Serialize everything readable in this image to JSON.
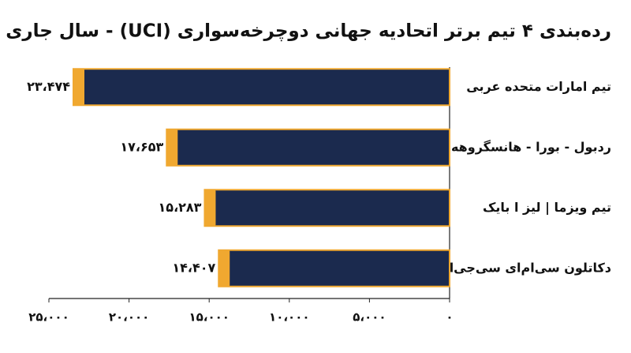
{
  "chart_data": {
    "type": "barh",
    "title": "رده‌بندی ۴ تیم برتر اتحادیه جهانی دوچرخه‌سواری (UCI) - سال جاری",
    "categories": [
      "تیم امارات متحده عربی",
      "ردبول - بورا - هانسگروهه",
      "تیم ویزما | لیز ا بایک",
      "دکاتلون سی‌ام‌ای سی‌جی‌ام"
    ],
    "values": [
      23474,
      17653,
      15283,
      14407
    ],
    "value_labels": [
      "۲۳،۴۷۴",
      "۱۷،۶۵۳",
      "۱۵،۲۸۳",
      "۱۴،۴۰۷"
    ],
    "color": "#1b2a4e",
    "edge_color": "#f0a830",
    "xlim": [
      0,
      25000
    ],
    "xticks": [
      {
        "value": 0,
        "label": "۰"
      },
      {
        "value": 5000,
        "label": "۵،۰۰۰"
      },
      {
        "value": 10000,
        "label": "۱۰،۰۰۰"
      },
      {
        "value": 15000,
        "label": "۱۵،۰۰۰"
      },
      {
        "value": 20000,
        "label": "۲۰،۰۰۰"
      },
      {
        "value": 25000,
        "label": "۲۵،۰۰۰"
      }
    ],
    "x_reversed": true
  }
}
